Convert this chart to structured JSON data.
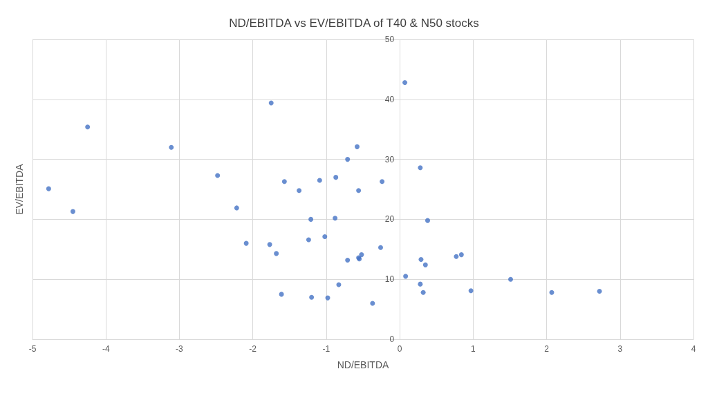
{
  "chart_data": {
    "type": "scatter",
    "title": "ND/EBITDA vs EV/EBITDA of T40 & N50 stocks",
    "xlabel": "ND/EBITDA",
    "ylabel": "EV/EBITDA",
    "x": [
      -4.78,
      -4.45,
      -4.25,
      -3.11,
      -2.48,
      -2.22,
      -2.09,
      -1.75,
      -1.57,
      -1.37,
      -1.09,
      -0.87,
      -0.71,
      -0.58,
      -0.56,
      -0.24,
      0.07,
      0.28,
      -1.21,
      -0.88,
      0.38,
      -1.77,
      -1.68,
      -1.24,
      -1.02,
      -0.71,
      -0.56,
      -0.55,
      -0.52,
      -0.26,
      0.08,
      0.29,
      0.35,
      0.28,
      0.32,
      0.77,
      0.84,
      0.97,
      -1.61,
      -1.2,
      -0.98,
      -0.83,
      -0.37,
      1.51,
      2.07,
      2.72
    ],
    "values": [
      25.1,
      21.3,
      35.4,
      32.0,
      27.3,
      21.9,
      16.0,
      39.4,
      26.3,
      24.8,
      26.5,
      27.0,
      30.0,
      32.1,
      24.8,
      26.3,
      42.8,
      28.6,
      20.0,
      20.2,
      19.8,
      15.8,
      14.3,
      16.6,
      17.1,
      13.2,
      13.6,
      13.4,
      14.1,
      15.3,
      10.5,
      13.3,
      12.4,
      9.2,
      7.8,
      13.8,
      14.1,
      8.1,
      7.5,
      7.0,
      6.9,
      9.1,
      6.0,
      10.0,
      7.8,
      8.0
    ],
    "color": "#4472c4",
    "marker": "circle",
    "xlim": [
      -5,
      4
    ],
    "xticks": [
      -5,
      -4,
      -3,
      -2,
      -1,
      0,
      1,
      2,
      3,
      4
    ],
    "ylim": [
      0,
      50
    ],
    "yticks": [
      0,
      10,
      20,
      30,
      40,
      50
    ],
    "grid": true
  }
}
